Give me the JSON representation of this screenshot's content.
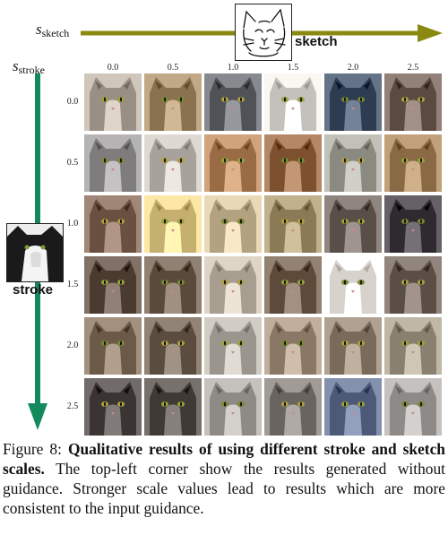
{
  "header": {
    "s_sketch": {
      "base": "s",
      "sub": "sketch"
    },
    "s_stroke": {
      "base": "s",
      "sub": "stroke"
    },
    "sketch_label": "sketch",
    "stroke_label": "stroke"
  },
  "columns": [
    "0.0",
    "0.5",
    "1.0",
    "1.5",
    "2.0",
    "2.5"
  ],
  "rows": [
    "0.0",
    "0.5",
    "1.0",
    "1.5",
    "2.0",
    "2.5"
  ],
  "colors": {
    "sketch_arrow": "#8b8a10",
    "stroke_arrow": "#138a5c"
  },
  "tiles": [
    [
      "#9a8f85",
      "#8a7250",
      "#4f5257",
      "#c4c1bc",
      "#2d3c50",
      "#5a4a42"
    ],
    [
      "#7e7c7c",
      "#a7a29c",
      "#9a6c45",
      "#7d5030",
      "#8b8a80",
      "#8a6a45"
    ],
    [
      "#6a5040",
      "#c5b070",
      "#b2a280",
      "#8a7a55",
      "#5a4e48",
      "#2e2a30"
    ],
    [
      "#4a3a30",
      "#5a4a3c",
      "#a89e90",
      "#5c4a3a",
      "#d7d2cc",
      "#5a4e46"
    ],
    [
      "#6c5a48",
      "#5a4c3e",
      "#9a968e",
      "#8a7866",
      "#7a6a5a",
      "#8a8070"
    ],
    [
      "#3a3432",
      "#403a36",
      "#8e8a86",
      "#6a6460",
      "#4c5a78",
      "#8e8a88"
    ]
  ],
  "caption": {
    "prefix": "Figure 8: ",
    "bold": "Qualitative results of using different stroke and sketch scales.",
    "rest": " The top-left corner show the results generated without guidance. Stronger scale values lead to results which are more consistent to the input guidance."
  }
}
